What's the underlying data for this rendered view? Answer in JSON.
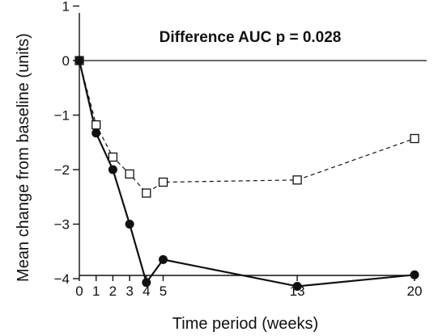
{
  "chart_data": {
    "type": "line",
    "annotation": "Difference AUC p = 0.028",
    "xlabel": "Time period (weeks)",
    "ylabel": "Mean change from baseline (units)",
    "xticks": [
      0,
      1,
      2,
      3,
      4,
      5,
      13,
      20
    ],
    "yticks": [
      1,
      0,
      -1,
      -2,
      -3,
      -4
    ],
    "ytick_labels": [
      "1",
      "0",
      "−1",
      "−2",
      "−3",
      "−4"
    ],
    "xlim": [
      0,
      20
    ],
    "ylim": [
      -4.6,
      1
    ],
    "reference_line_y": 0,
    "grid": false,
    "series": [
      {
        "marker": "filled-circle",
        "line_style": "solid",
        "x": [
          0,
          1,
          2,
          3,
          4,
          5,
          13,
          20
        ],
        "y": [
          0,
          -1.33,
          -2.0,
          -3.0,
          -4.07,
          -3.65,
          -4.14,
          -3.93
        ]
      },
      {
        "marker": "open-square",
        "line_style": "dashed",
        "x": [
          0,
          1,
          2,
          3,
          4,
          5,
          13,
          20
        ],
        "y": [
          0,
          -1.18,
          -1.77,
          -2.08,
          -2.43,
          -2.23,
          -2.19,
          -1.43
        ]
      }
    ]
  }
}
